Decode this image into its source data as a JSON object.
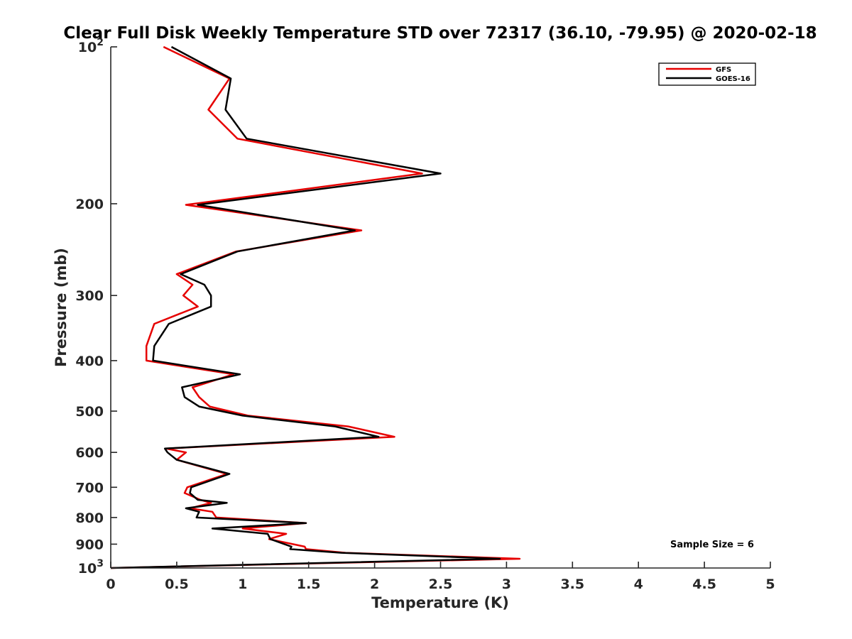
{
  "chart_data": {
    "type": "line",
    "title": "Clear Full Disk Weekly Temperature STD over 72317 (36.10, -79.95) @ 2020-02-18",
    "xlabel": "Temperature (K)",
    "ylabel": "Pressure (mb)",
    "xlim": [
      0,
      5
    ],
    "ylim": [
      100,
      1000
    ],
    "y_scale": "log",
    "y_reversed": true,
    "grid": false,
    "legend_position": "top-right",
    "x_ticks": [
      "0",
      "0.5",
      "1",
      "1.5",
      "2",
      "2.5",
      "3",
      "3.5",
      "4",
      "4.5",
      "5"
    ],
    "y_ticks": [
      {
        "value": 100,
        "base": "10",
        "exp": "2"
      },
      {
        "value": 200,
        "label": "200"
      },
      {
        "value": 300,
        "label": "300"
      },
      {
        "value": 400,
        "label": "400"
      },
      {
        "value": 500,
        "label": "500"
      },
      {
        "value": 600,
        "label": "600"
      },
      {
        "value": 700,
        "label": "700"
      },
      {
        "value": 800,
        "label": "800"
      },
      {
        "value": 900,
        "label": "900"
      },
      {
        "value": 1000,
        "base": "10",
        "exp": "3"
      }
    ],
    "annotation": "Sample Size = 6",
    "series": [
      {
        "name": "GFS",
        "color": "#e60000",
        "x": [
          0.4,
          0.9,
          0.74,
          0.96,
          2.36,
          0.57,
          1.9,
          0.95,
          0.5,
          0.62,
          0.55,
          0.66,
          0.33,
          0.27,
          0.27,
          0.93,
          0.62,
          0.67,
          0.75,
          1.04,
          1.8,
          2.15,
          0.42,
          0.57,
          0.5,
          0.88,
          0.58,
          0.56,
          0.68,
          0.76,
          0.6,
          0.77,
          0.8,
          1.48,
          1.0,
          1.33,
          1.2,
          1.47,
          1.48,
          1.78,
          3.1,
          0.0
        ],
        "y": [
          100,
          115,
          132,
          150,
          175,
          201,
          225,
          247,
          273,
          286,
          300,
          315,
          340,
          375,
          400,
          425,
          450,
          470,
          490,
          510,
          535,
          560,
          590,
          600,
          620,
          660,
          700,
          718,
          740,
          750,
          768,
          780,
          800,
          820,
          840,
          860,
          880,
          910,
          920,
          935,
          960,
          1000
        ]
      },
      {
        "name": "GOES-16",
        "color": "#000000",
        "x": [
          0.46,
          0.91,
          0.87,
          1.03,
          2.5,
          0.66,
          1.85,
          0.96,
          0.53,
          0.71,
          0.76,
          0.76,
          0.44,
          0.33,
          0.32,
          0.98,
          0.54,
          0.56,
          0.67,
          1.0,
          1.7,
          2.03,
          0.41,
          0.43,
          0.5,
          0.9,
          0.61,
          0.6,
          0.66,
          0.88,
          0.57,
          0.67,
          0.65,
          1.48,
          0.77,
          1.19,
          1.21,
          1.37,
          1.36,
          1.75,
          2.95,
          0.0
        ],
        "y": [
          100,
          115,
          132,
          150,
          175,
          201,
          225,
          247,
          273,
          286,
          300,
          315,
          340,
          375,
          400,
          425,
          450,
          470,
          490,
          510,
          535,
          560,
          590,
          600,
          620,
          660,
          700,
          718,
          740,
          750,
          768,
          780,
          800,
          820,
          840,
          860,
          880,
          910,
          920,
          935,
          960,
          1000
        ]
      }
    ]
  }
}
